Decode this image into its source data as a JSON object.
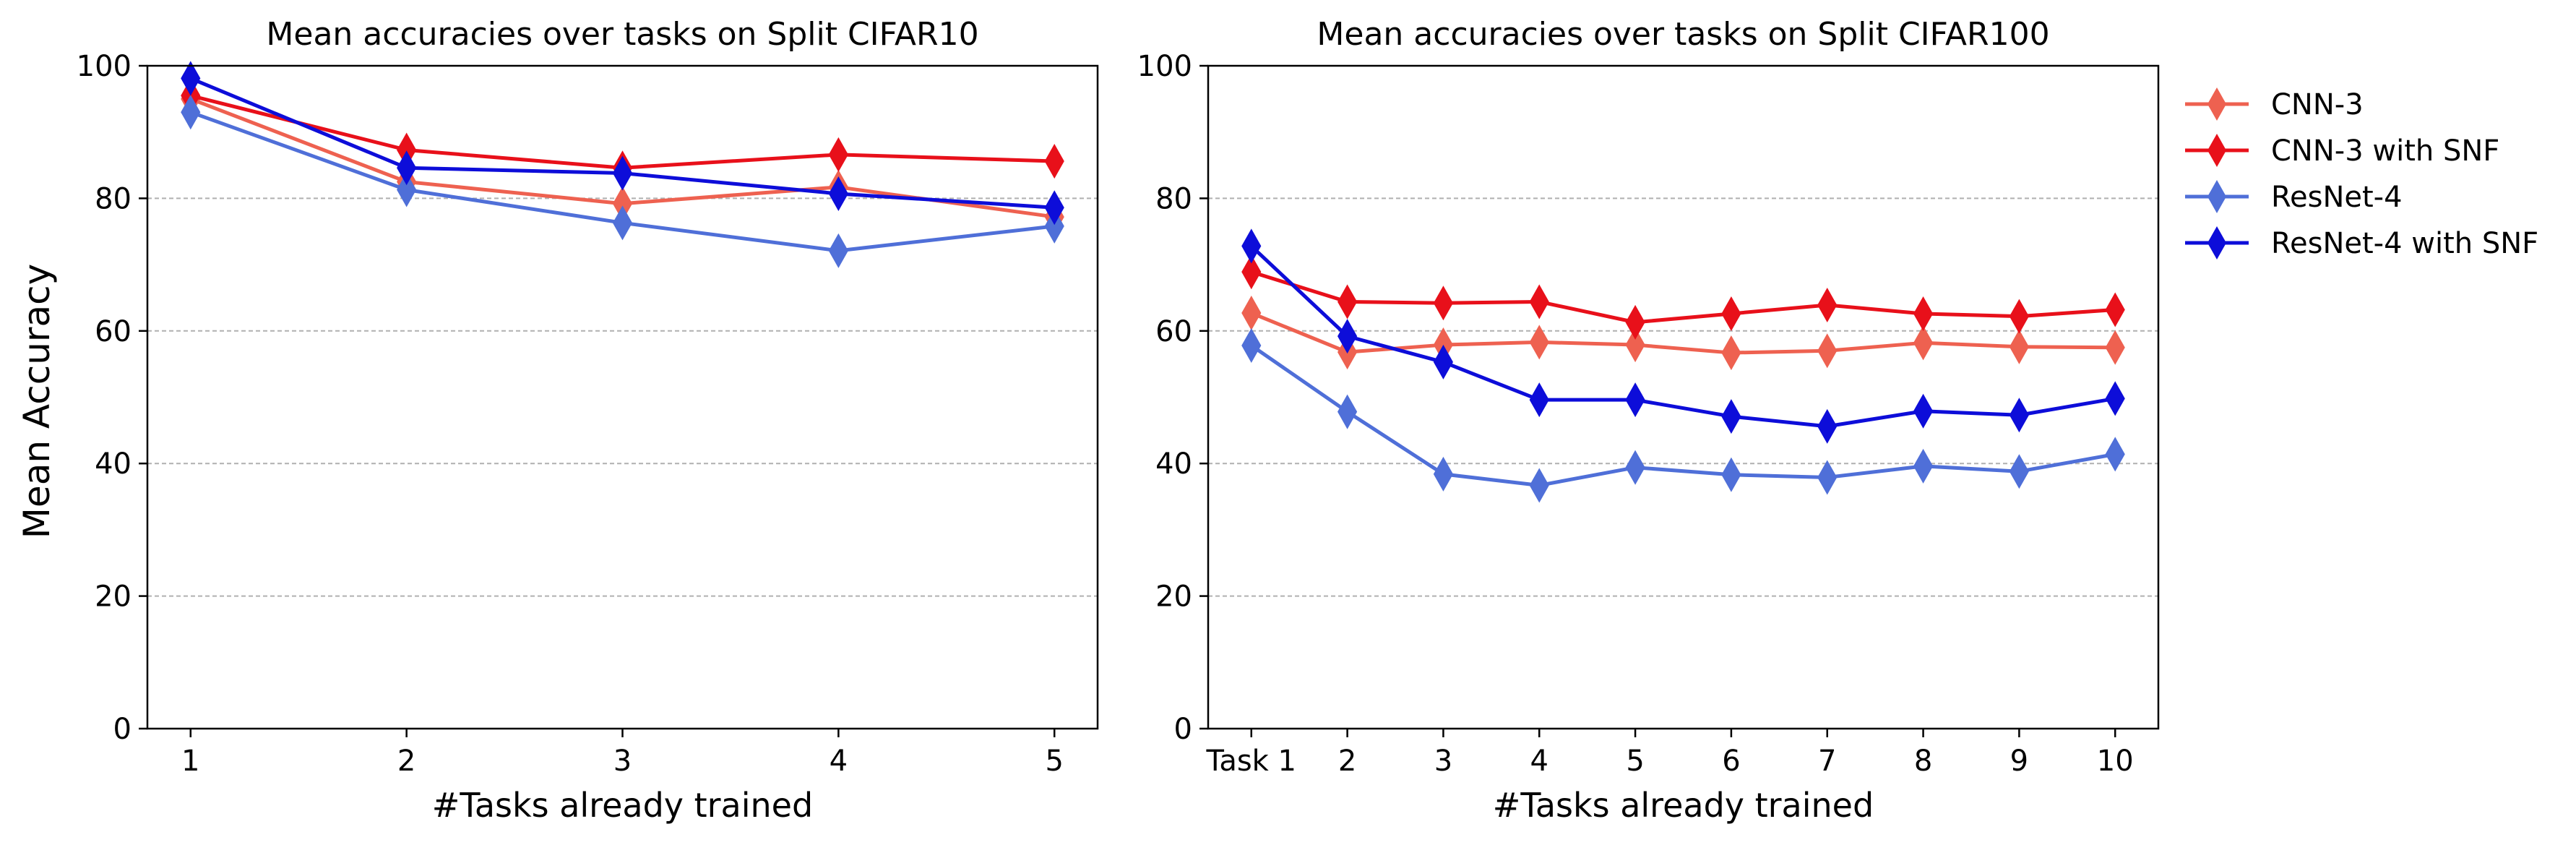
{
  "figure": {
    "ylabel": "Mean Accuracy"
  },
  "chart_data": [
    {
      "type": "line",
      "title": "Mean accuracies over tasks on Split CIFAR10",
      "xlabel": "#Tasks already trained",
      "ylabel": "Mean Accuracy",
      "x": [
        1,
        2,
        3,
        4,
        5
      ],
      "x_tick_labels": [
        "1",
        "2",
        "3",
        "4",
        "5"
      ],
      "xlim": [
        0.8,
        5.2
      ],
      "ylim": [
        0,
        100
      ],
      "y_ticks": [
        0,
        20,
        40,
        60,
        80,
        100
      ],
      "grid": "horizontal dashed",
      "series": [
        {
          "name": "CNN-3",
          "color": "#EE6150",
          "values": [
            95.0,
            82.5,
            79.2,
            81.7,
            77.2
          ]
        },
        {
          "name": "CNN-3 with SNF",
          "color": "#E8101A",
          "values": [
            95.5,
            87.3,
            84.6,
            86.6,
            85.6
          ]
        },
        {
          "name": "ResNet-4",
          "color": "#4F6FD8",
          "values": [
            93.0,
            81.3,
            76.3,
            72.1,
            75.8
          ]
        },
        {
          "name": "ResNet-4 with SNF",
          "color": "#0D0DD9",
          "values": [
            98.1,
            84.6,
            83.8,
            80.7,
            78.6
          ]
        }
      ]
    },
    {
      "type": "line",
      "title": "Mean accuracies over tasks on Split CIFAR100",
      "xlabel": "#Tasks already trained",
      "ylabel": "",
      "x": [
        1,
        2,
        3,
        4,
        5,
        6,
        7,
        8,
        9,
        10
      ],
      "x_tick_labels": [
        "Task 1",
        "2",
        "3",
        "4",
        "5",
        "6",
        "7",
        "8",
        "9",
        "10"
      ],
      "xlim": [
        0.55,
        10.45
      ],
      "ylim": [
        0,
        100
      ],
      "y_ticks": [
        0,
        20,
        40,
        60,
        80,
        100
      ],
      "grid": "horizontal dashed",
      "legend_position": "outside-top-right",
      "series": [
        {
          "name": "CNN-3",
          "color": "#EE6150",
          "values": [
            62.7,
            56.8,
            57.9,
            58.3,
            57.9,
            56.7,
            57.0,
            58.2,
            57.6,
            57.5
          ]
        },
        {
          "name": "CNN-3 with SNF",
          "color": "#E8101A",
          "values": [
            68.9,
            64.4,
            64.2,
            64.4,
            61.3,
            62.6,
            63.9,
            62.6,
            62.2,
            63.2
          ]
        },
        {
          "name": "ResNet-4",
          "color": "#4F6FD8",
          "values": [
            57.8,
            47.8,
            38.4,
            36.7,
            39.4,
            38.3,
            37.9,
            39.6,
            38.8,
            41.4
          ]
        },
        {
          "name": "ResNet-4 with SNF",
          "color": "#0D0DD9",
          "values": [
            72.8,
            59.2,
            55.3,
            49.6,
            49.6,
            47.1,
            45.6,
            47.9,
            47.3,
            49.8
          ]
        }
      ]
    }
  ]
}
